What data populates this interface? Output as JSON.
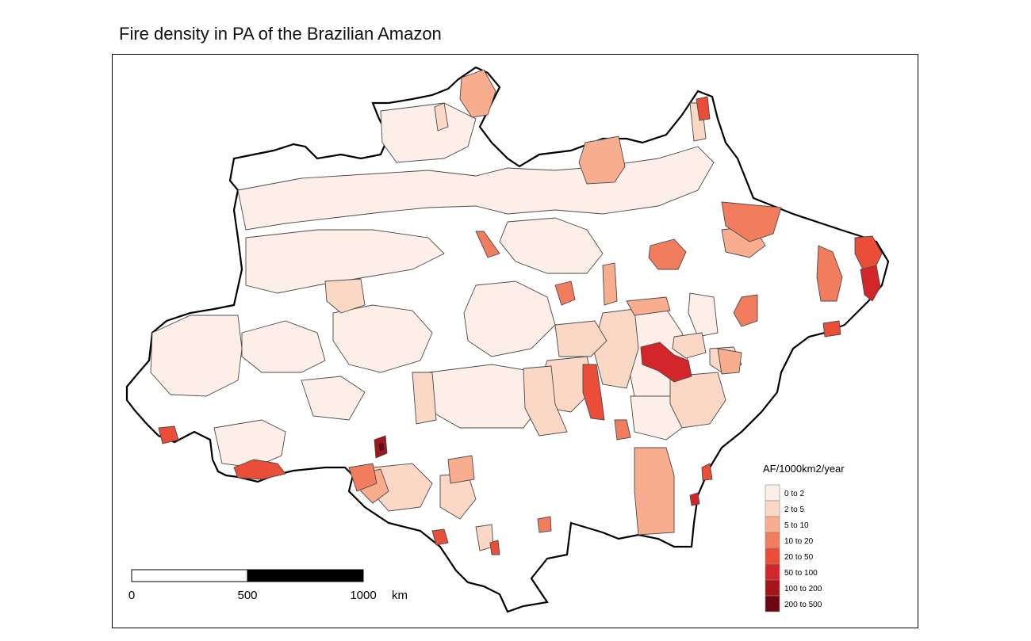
{
  "title": "Fire density in PA of the Brazilian Amazon",
  "legend": {
    "title": "AF/1000km2/year",
    "classes": [
      {
        "label": "0 to 2",
        "color": "#fdefe8"
      },
      {
        "label": "2 to 5",
        "color": "#fbd7c6"
      },
      {
        "label": "5 to 10",
        "color": "#f8ad8f"
      },
      {
        "label": "10 to 20",
        "color": "#f27d5e"
      },
      {
        "label": "20 to 50",
        "color": "#ea4d38"
      },
      {
        "label": "50 to 100",
        "color": "#d2262a"
      },
      {
        "label": "100 to 200",
        "color": "#a61319"
      },
      {
        "label": "200 to 500",
        "color": "#6e0611"
      }
    ]
  },
  "scale_bar": {
    "ticks": [
      "0",
      "500",
      "1000"
    ],
    "unit": "km"
  }
}
